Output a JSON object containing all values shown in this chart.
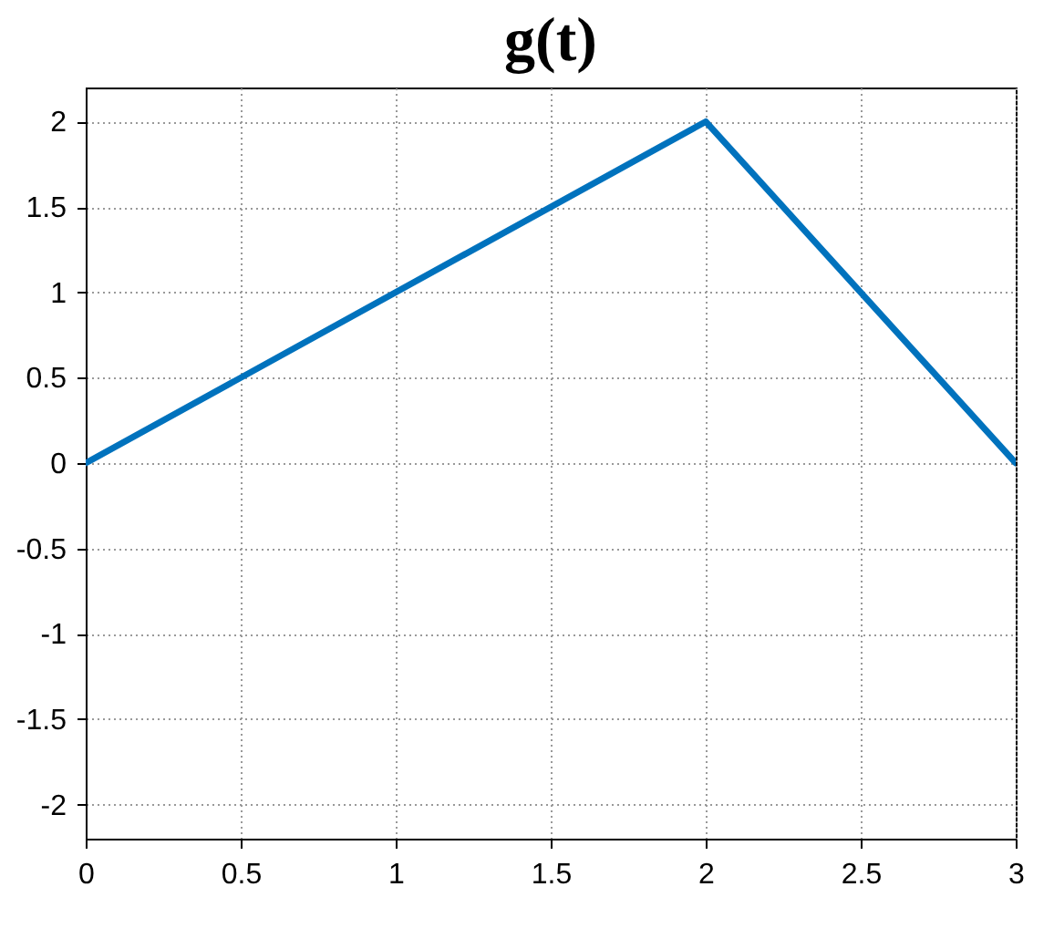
{
  "chart_data": {
    "type": "line",
    "title": "g(t)",
    "x": [
      0,
      2,
      3
    ],
    "series": [
      {
        "color": "#0072bd",
        "values": [
          0,
          2,
          0
        ]
      }
    ],
    "xlim": [
      0,
      3
    ],
    "xticks": [
      0,
      0.5,
      1,
      1.5,
      2,
      2.5,
      3
    ],
    "ylim": [
      -2.2,
      2.2
    ],
    "yticks": [
      -2,
      -1.5,
      -1,
      -0.5,
      0,
      0.5,
      1,
      1.5,
      2
    ],
    "grid": true,
    "marker": "none",
    "line_style": "solid"
  }
}
